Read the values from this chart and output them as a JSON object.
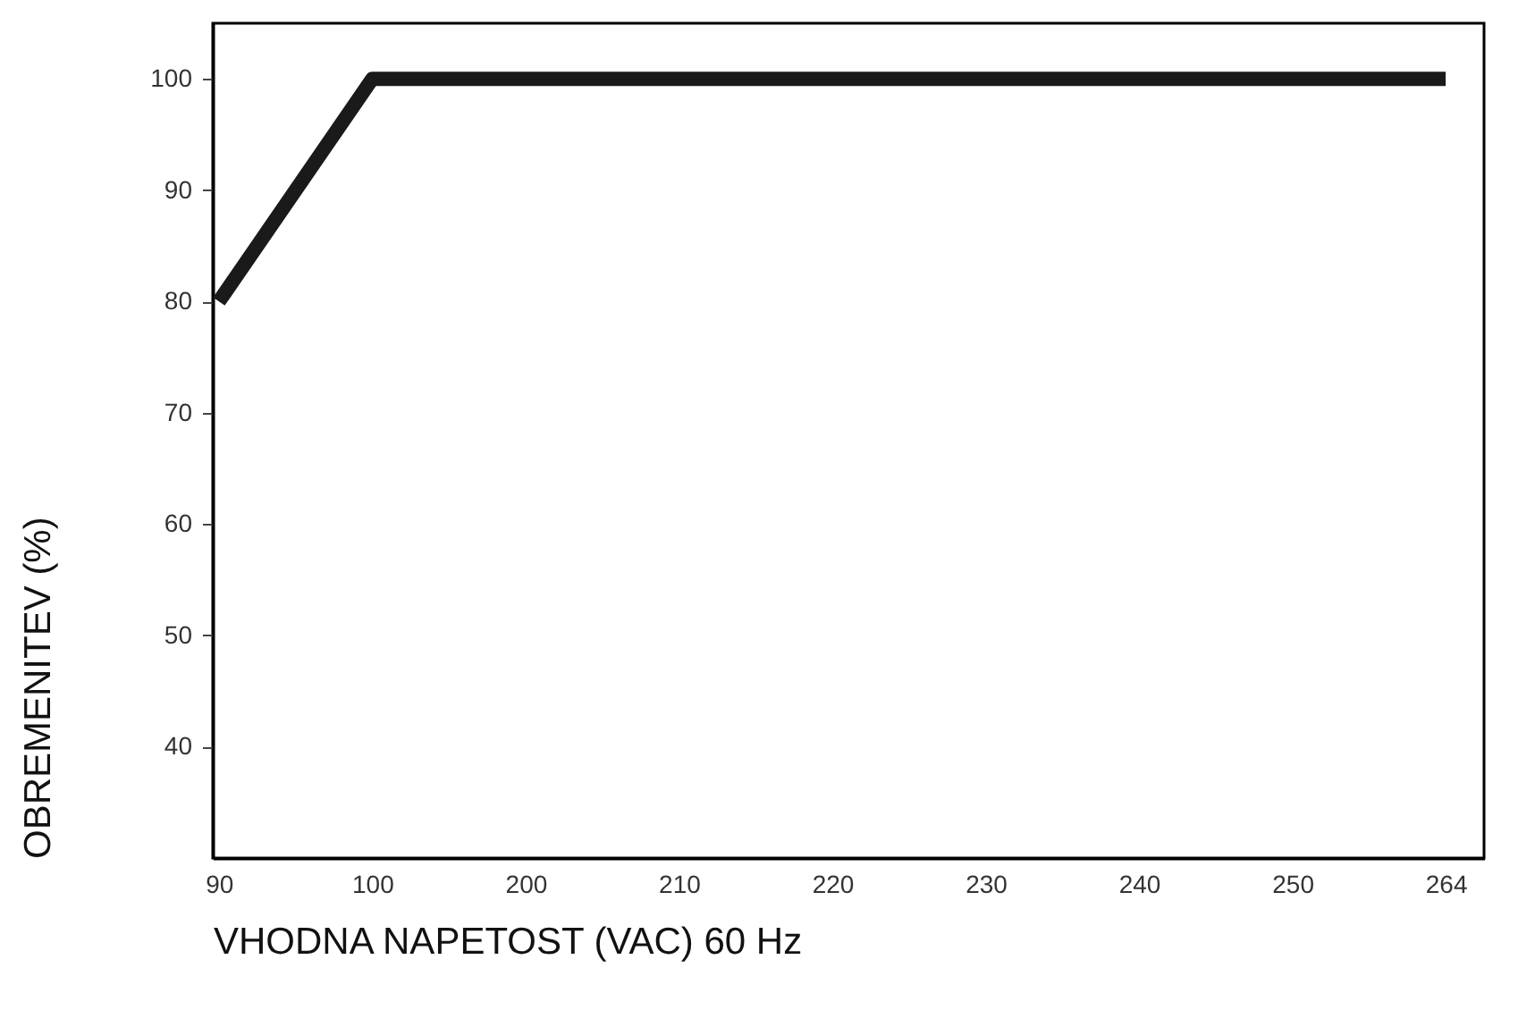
{
  "chart_data": {
    "type": "line",
    "xlabel": "VHODNA NAPETOST (VAC) 60 Hz",
    "ylabel": "OBREMENITEV (%)",
    "categories": [
      "90",
      "100",
      "200",
      "210",
      "220",
      "230",
      "240",
      "250",
      "264"
    ],
    "series": [
      {
        "color": "#1a1a1a",
        "values": [
          80,
          100,
          100,
          100,
          100,
          100,
          100,
          100,
          100
        ]
      }
    ],
    "ylim": [
      30,
      105
    ],
    "yticks": [
      40,
      50,
      60,
      70,
      80,
      90,
      100
    ],
    "grid": false,
    "marker": "none",
    "line_style": "solid"
  }
}
